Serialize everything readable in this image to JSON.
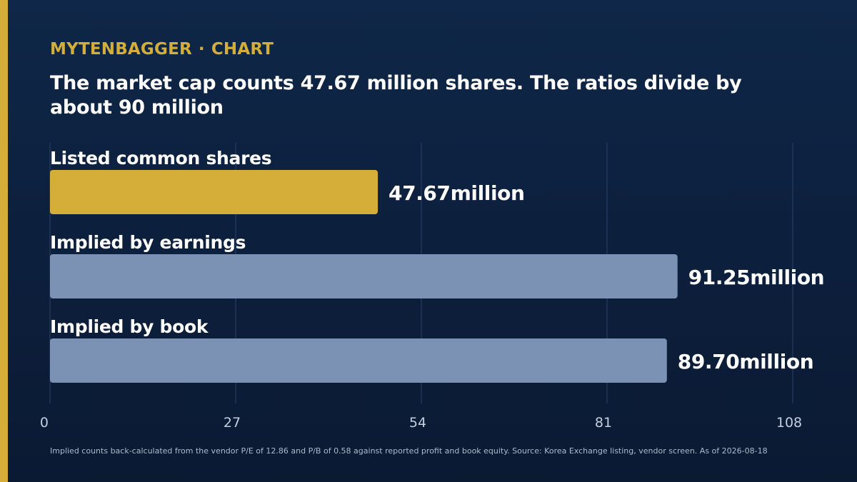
{
  "brand": {
    "name": "MYTENBAGGER",
    "separator": "·",
    "section": "CHART"
  },
  "headline": "The market cap counts 47.67 million shares. The ratios divide by about 90 million",
  "colors": {
    "accent": "#d4ae38",
    "bar_secondary": "#7b92b5",
    "gridline": "#2b4168",
    "background": "#0c1f3c"
  },
  "chart_data": {
    "type": "bar",
    "orientation": "horizontal",
    "categories": [
      "Listed common shares",
      "Implied by earnings",
      "Implied by book"
    ],
    "values": [
      47.67,
      91.25,
      89.7
    ],
    "value_labels": [
      "47.67million",
      "91.25million",
      "89.70million"
    ],
    "highlight_index": 0,
    "xlim": [
      0,
      108
    ],
    "xticks": [
      0,
      27,
      54,
      81,
      108
    ],
    "grid": true,
    "legend": "none"
  },
  "footnote": "Implied counts back-calculated from the vendor P/E of 12.86 and P/B of 0.58 against reported profit and book equity. Source: Korea Exchange listing, vendor screen. As of 2026-08-18"
}
